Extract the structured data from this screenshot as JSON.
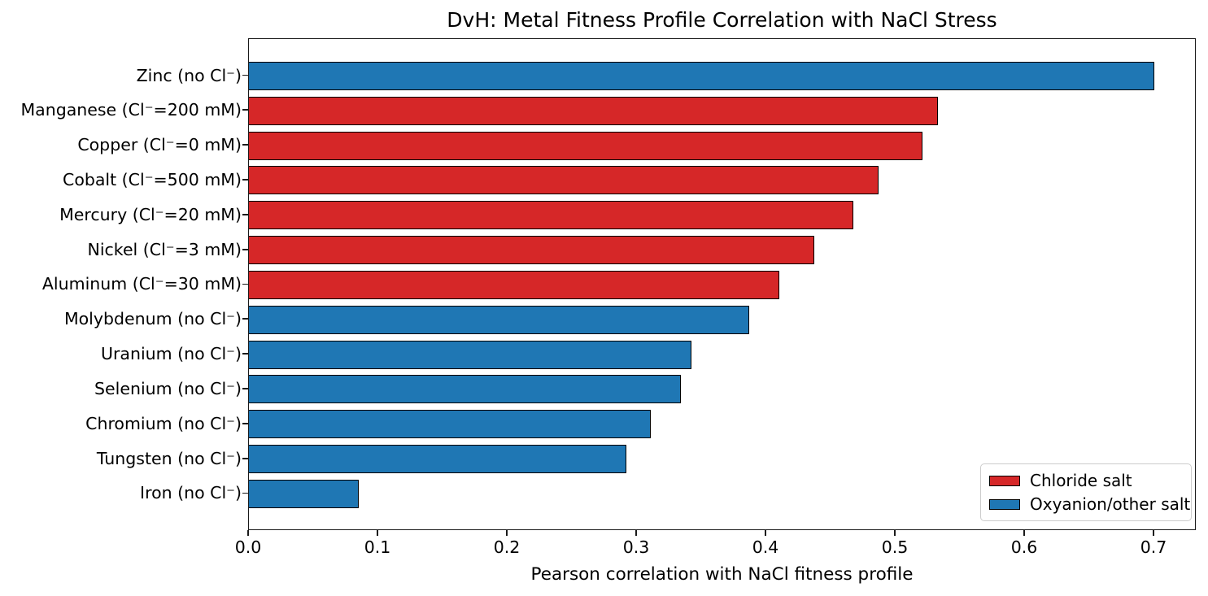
{
  "chart_data": {
    "type": "bar",
    "orientation": "horizontal",
    "title": "DvH: Metal Fitness Profile Correlation with NaCl Stress",
    "xlabel": "Pearson correlation with NaCl fitness profile",
    "ylabel": "",
    "xlim": [
      0.0,
      0.733
    ],
    "xticks": [
      0.0,
      0.1,
      0.2,
      0.3,
      0.4,
      0.5,
      0.6,
      0.7
    ],
    "grid": false,
    "legend_position": "lower right",
    "bar_edge_color": "#000000",
    "group_colors": {
      "chloride": "#d62728",
      "oxyanion": "#1f77b4"
    },
    "legend": [
      {
        "label": "Chloride salt",
        "group": "chloride"
      },
      {
        "label": "Oxyanion/other salt",
        "group": "oxyanion"
      }
    ],
    "points": [
      {
        "label": "Zinc (no Cl⁻)",
        "value": 0.7,
        "group": "oxyanion"
      },
      {
        "label": "Manganese (Cl⁻=200 mM)",
        "value": 0.533,
        "group": "chloride"
      },
      {
        "label": "Copper (Cl⁻=0 mM)",
        "value": 0.521,
        "group": "chloride"
      },
      {
        "label": "Cobalt (Cl⁻=500 mM)",
        "value": 0.487,
        "group": "chloride"
      },
      {
        "label": "Mercury (Cl⁻=20 mM)",
        "value": 0.467,
        "group": "chloride"
      },
      {
        "label": "Nickel (Cl⁻=3 mM)",
        "value": 0.437,
        "group": "chloride"
      },
      {
        "label": "Aluminum (Cl⁻=30 mM)",
        "value": 0.41,
        "group": "chloride"
      },
      {
        "label": "Molybdenum (no Cl⁻)",
        "value": 0.387,
        "group": "oxyanion"
      },
      {
        "label": "Uranium (no Cl⁻)",
        "value": 0.342,
        "group": "oxyanion"
      },
      {
        "label": "Selenium (no Cl⁻)",
        "value": 0.334,
        "group": "oxyanion"
      },
      {
        "label": "Chromium (no Cl⁻)",
        "value": 0.311,
        "group": "oxyanion"
      },
      {
        "label": "Tungsten (no Cl⁻)",
        "value": 0.292,
        "group": "oxyanion"
      },
      {
        "label": "Iron (no Cl⁻)",
        "value": 0.085,
        "group": "oxyanion"
      }
    ]
  }
}
